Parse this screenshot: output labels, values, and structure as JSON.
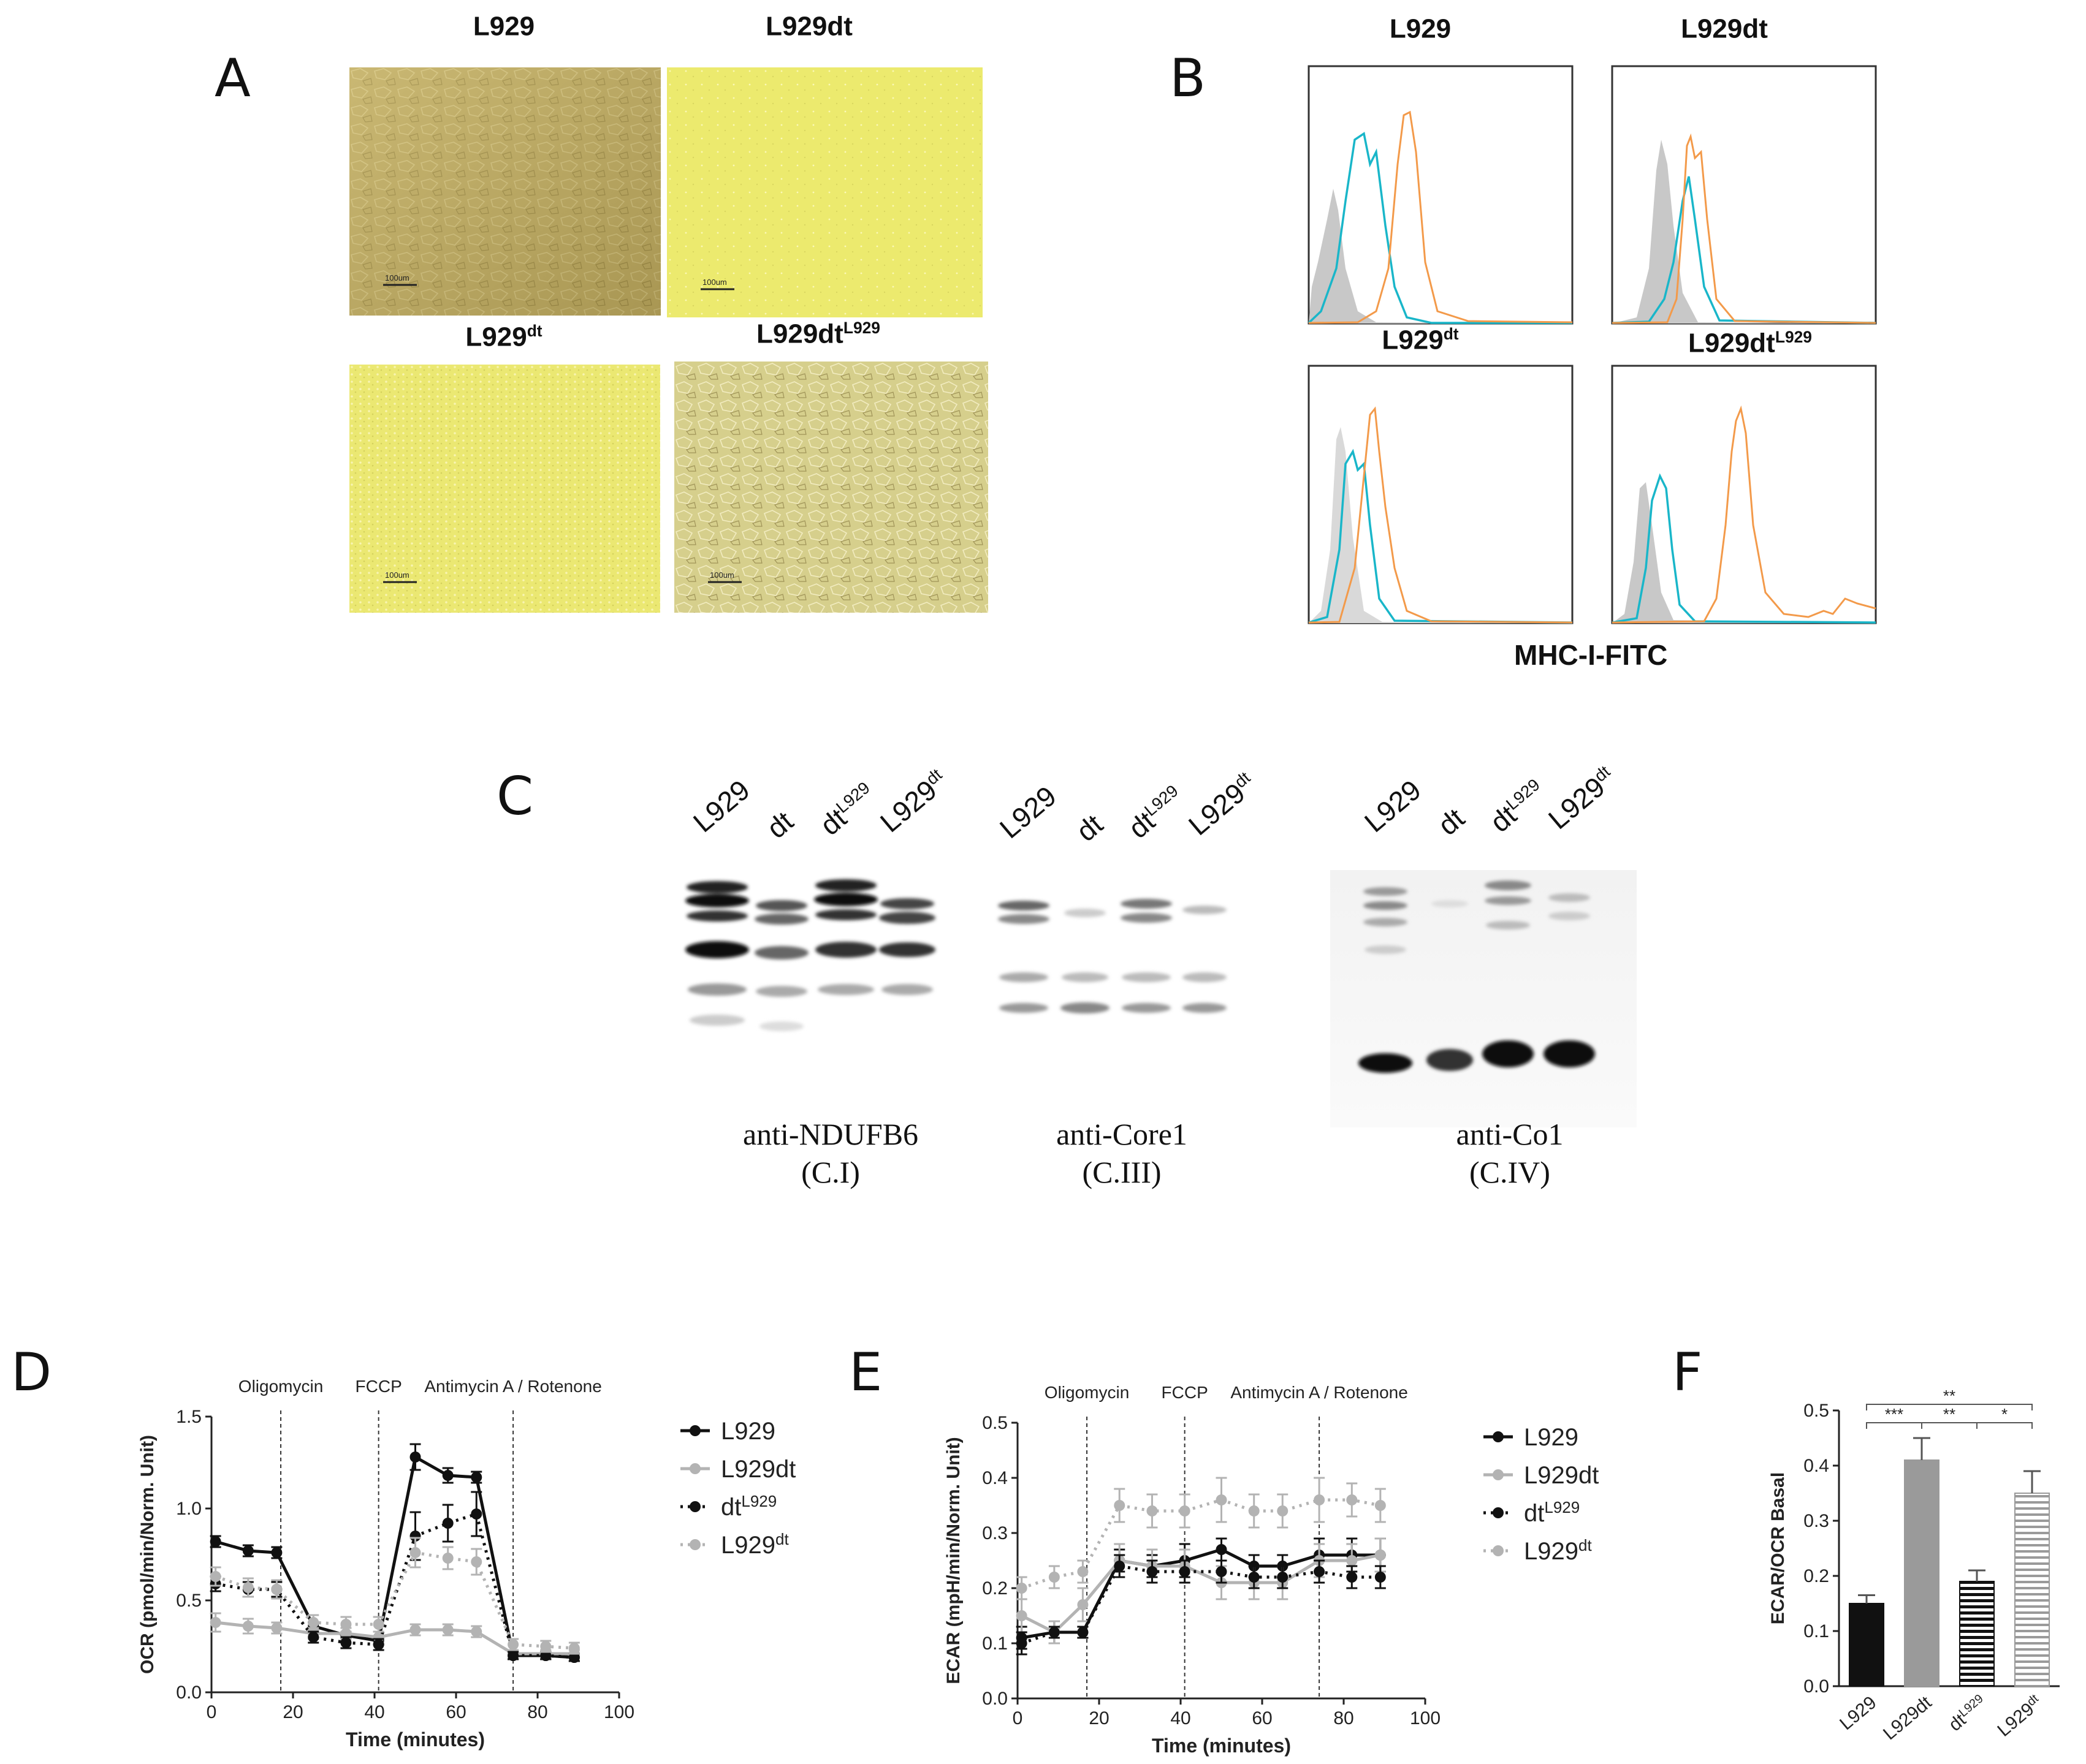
{
  "panels": {
    "A": {
      "label": "A",
      "images": [
        {
          "title": "L929",
          "sup": "",
          "scale": "100um",
          "tone": "confluent"
        },
        {
          "title": "L929dt",
          "sup": "",
          "scale": "100um",
          "tone": "sparse"
        },
        {
          "title": "L929",
          "sup": "dt",
          "scale": "100um",
          "tone": "sparse"
        },
        {
          "title": "L929dt",
          "sup": "L929",
          "scale": "100um",
          "tone": "confluent"
        }
      ]
    },
    "B": {
      "label": "B",
      "histograms": [
        {
          "title": "L929",
          "sup": ""
        },
        {
          "title": "L929dt",
          "sup": ""
        },
        {
          "title": "L929",
          "sup": "dt"
        },
        {
          "title": "L929dt",
          "sup": "L929"
        }
      ],
      "xlabel": "MHC-I-FITC",
      "colors": {
        "isotype": "#c8c8c8",
        "cyan": "#19b6c9",
        "orange": "#f39a4a"
      }
    },
    "C": {
      "label": "C",
      "blots": [
        {
          "lanes": [
            {
              "t": "L929",
              "s": ""
            },
            {
              "t": "dt",
              "s": ""
            },
            {
              "t": "dt",
              "s": "L929"
            },
            {
              "t": "L929",
              "s": "dt"
            }
          ],
          "caption1": "anti-NDUFB6",
          "caption2": "(C.I)"
        },
        {
          "lanes": [
            {
              "t": "L929",
              "s": ""
            },
            {
              "t": "dt",
              "s": ""
            },
            {
              "t": "dt",
              "s": "L929"
            },
            {
              "t": "L929",
              "s": "dt"
            }
          ],
          "caption1": "anti-Core1",
          "caption2": "(C.III)"
        },
        {
          "lanes": [
            {
              "t": "L929",
              "s": ""
            },
            {
              "t": "dt",
              "s": ""
            },
            {
              "t": "dt",
              "s": "L929"
            },
            {
              "t": "L929",
              "s": "dt"
            }
          ],
          "caption1": "anti-Co1",
          "caption2": "(C.IV)"
        }
      ]
    },
    "D": {
      "label": "D"
    },
    "E": {
      "label": "E"
    },
    "F": {
      "label": "F"
    }
  },
  "chart_data": [
    {
      "id": "D",
      "type": "line",
      "xlabel": "Time (minutes)",
      "ylabel": "OCR (pmol/min/Norm. Unit)",
      "xlim": [
        0,
        100
      ],
      "ylim": [
        0,
        1.5
      ],
      "xticks": [
        "0",
        "20",
        "40",
        "60",
        "80",
        "100"
      ],
      "yticks": [
        "0.0",
        "0.5",
        "1.0",
        "1.5"
      ],
      "injections": [
        {
          "x": 17,
          "label": "Oligomycin"
        },
        {
          "x": 41,
          "label": "FCCP"
        },
        {
          "x": 74,
          "label": "Antimycin A / Rotenone"
        }
      ],
      "x": [
        1,
        9,
        16,
        25,
        33,
        41,
        50,
        58,
        65,
        74,
        82,
        89
      ],
      "series": [
        {
          "name": "L929",
          "sup": "",
          "color": "#111111",
          "dash": "solid",
          "values": [
            0.82,
            0.77,
            0.76,
            0.36,
            0.31,
            0.28,
            1.28,
            1.18,
            1.17,
            0.2,
            0.2,
            0.19
          ],
          "errors": [
            0.03,
            0.03,
            0.03,
            0.02,
            0.02,
            0.02,
            0.07,
            0.04,
            0.03,
            0.02,
            0.02,
            0.02
          ]
        },
        {
          "name": "L929dt",
          "sup": "",
          "color": "#b3b3b3",
          "dash": "solid",
          "values": [
            0.38,
            0.36,
            0.35,
            0.32,
            0.32,
            0.3,
            0.34,
            0.34,
            0.33,
            0.21,
            0.21,
            0.21
          ],
          "errors": [
            0.05,
            0.04,
            0.03,
            0.03,
            0.03,
            0.03,
            0.03,
            0.03,
            0.03,
            0.02,
            0.02,
            0.02
          ]
        },
        {
          "name": "dt",
          "sup": "L929",
          "color": "#111111",
          "dash": "dot",
          "values": [
            0.59,
            0.56,
            0.56,
            0.3,
            0.27,
            0.26,
            0.85,
            0.92,
            0.97,
            0.2,
            0.2,
            0.19
          ],
          "errors": [
            0.04,
            0.04,
            0.04,
            0.03,
            0.03,
            0.03,
            0.13,
            0.1,
            0.12,
            0.02,
            0.02,
            0.02
          ]
        },
        {
          "name": "L929",
          "sup": "dt",
          "color": "#b3b3b3",
          "dash": "dot",
          "values": [
            0.63,
            0.57,
            0.56,
            0.38,
            0.37,
            0.37,
            0.76,
            0.73,
            0.71,
            0.26,
            0.25,
            0.24
          ],
          "errors": [
            0.05,
            0.05,
            0.05,
            0.04,
            0.04,
            0.04,
            0.08,
            0.06,
            0.07,
            0.03,
            0.03,
            0.03
          ]
        }
      ]
    },
    {
      "id": "E",
      "type": "line",
      "xlabel": "Time (minutes)",
      "ylabel": "ECAR (mpH/min/Norm. Unit)",
      "xlim": [
        0,
        100
      ],
      "ylim": [
        0,
        0.5
      ],
      "xticks": [
        "0",
        "20",
        "40",
        "60",
        "80",
        "100"
      ],
      "yticks": [
        "0.0",
        "0.1",
        "0.2",
        "0.3",
        "0.4",
        "0.5"
      ],
      "injections": [
        {
          "x": 17,
          "label": "Oligomycin"
        },
        {
          "x": 41,
          "label": "FCCP"
        },
        {
          "x": 74,
          "label": "Antimycin A / Rotenone"
        }
      ],
      "x": [
        1,
        9,
        16,
        25,
        33,
        41,
        50,
        58,
        65,
        74,
        82,
        89
      ],
      "series": [
        {
          "name": "L929",
          "sup": "",
          "color": "#111111",
          "dash": "solid",
          "values": [
            0.11,
            0.12,
            0.12,
            0.25,
            0.24,
            0.25,
            0.27,
            0.24,
            0.24,
            0.26,
            0.26,
            0.26
          ],
          "errors": [
            0.02,
            0.02,
            0.01,
            0.02,
            0.02,
            0.03,
            0.02,
            0.02,
            0.02,
            0.03,
            0.03,
            0.03
          ]
        },
        {
          "name": "L929dt",
          "sup": "",
          "color": "#b3b3b3",
          "dash": "solid",
          "values": [
            0.15,
            0.12,
            0.17,
            0.25,
            0.24,
            0.24,
            0.21,
            0.21,
            0.21,
            0.25,
            0.25,
            0.26
          ],
          "errors": [
            0.03,
            0.02,
            0.03,
            0.03,
            0.03,
            0.03,
            0.03,
            0.03,
            0.03,
            0.03,
            0.03,
            0.03
          ]
        },
        {
          "name": "dt",
          "sup": "L929",
          "color": "#111111",
          "dash": "dot",
          "values": [
            0.1,
            0.12,
            0.12,
            0.24,
            0.23,
            0.23,
            0.23,
            0.22,
            0.22,
            0.23,
            0.22,
            0.22
          ],
          "errors": [
            0.02,
            0.01,
            0.01,
            0.02,
            0.02,
            0.02,
            0.02,
            0.02,
            0.02,
            0.02,
            0.02,
            0.02
          ]
        },
        {
          "name": "L929",
          "sup": "dt",
          "color": "#b3b3b3",
          "dash": "dot",
          "values": [
            0.2,
            0.22,
            0.23,
            0.35,
            0.34,
            0.34,
            0.36,
            0.34,
            0.34,
            0.36,
            0.36,
            0.35
          ],
          "errors": [
            0.02,
            0.02,
            0.02,
            0.03,
            0.03,
            0.03,
            0.04,
            0.03,
            0.03,
            0.04,
            0.03,
            0.03
          ]
        }
      ]
    },
    {
      "id": "F",
      "type": "bar",
      "ylabel": "ECAR/OCR Basal",
      "ylim": [
        0,
        0.5
      ],
      "yticks": [
        "0.0",
        "0.1",
        "0.2",
        "0.3",
        "0.4",
        "0.5"
      ],
      "categories": [
        {
          "t": "L929",
          "s": ""
        },
        {
          "t": "L929dt",
          "s": ""
        },
        {
          "t": "dt",
          "s": "L929"
        },
        {
          "t": "L929",
          "s": "dt"
        }
      ],
      "values": [
        0.15,
        0.41,
        0.19,
        0.35
      ],
      "errors": [
        0.015,
        0.04,
        0.02,
        0.04
      ],
      "fills": [
        "solid-black",
        "solid-gray",
        "hatched-black",
        "hatched-gray"
      ],
      "significance": [
        {
          "from": 0,
          "to": 1,
          "label": "***"
        },
        {
          "from": 1,
          "to": 2,
          "label": "**"
        },
        {
          "from": 2,
          "to": 3,
          "label": "*"
        },
        {
          "from": 0,
          "to": 3,
          "label": "**"
        }
      ]
    }
  ]
}
